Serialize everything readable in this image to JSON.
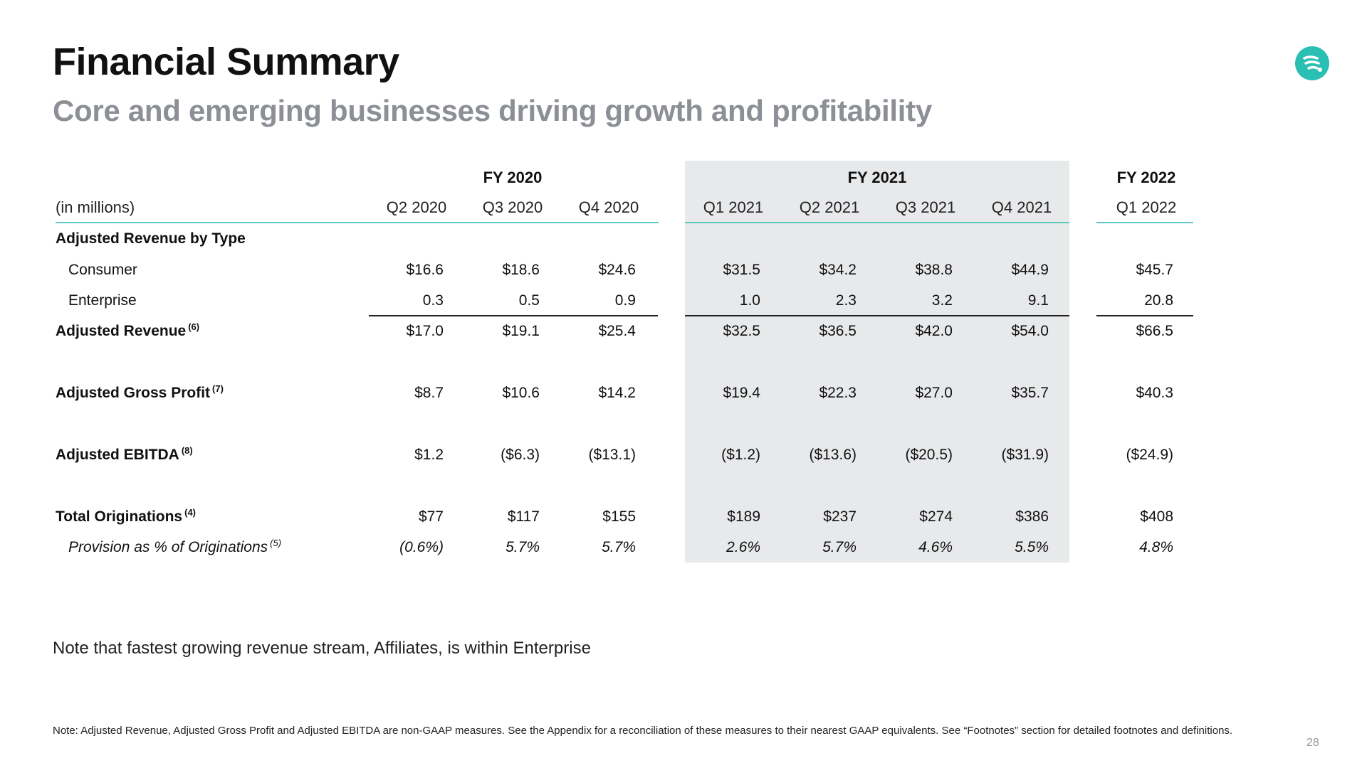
{
  "header": {
    "title": "Financial Summary",
    "subtitle": "Core and emerging businesses driving growth and profitability"
  },
  "colors": {
    "accent": "#5cc7bd",
    "shade": "#e8e9eb",
    "subtitle": "#8c8f96"
  },
  "logo_icon": "chat-bubble-logo-icon",
  "table": {
    "unit_label": "(in millions)",
    "groups": [
      "FY 2020",
      "FY 2021",
      "FY 2022"
    ],
    "columns": [
      "Q2 2020",
      "Q3 2020",
      "Q4 2020",
      "Q1 2021",
      "Q2 2021",
      "Q3 2021",
      "Q4 2021",
      "Q1 2022"
    ],
    "section_heading": "Adjusted Revenue by Type",
    "rows": [
      {
        "label": "Consumer",
        "footnote": "",
        "values": [
          "$16.6",
          "$18.6",
          "$24.6",
          "$31.5",
          "$34.2",
          "$38.8",
          "$44.9",
          "$45.7"
        ]
      },
      {
        "label": "Enterprise",
        "footnote": "",
        "values": [
          "0.3",
          "0.5",
          "0.9",
          "1.0",
          "2.3",
          "3.2",
          "9.1",
          "20.8"
        ]
      },
      {
        "label": "Adjusted Revenue",
        "footnote": "(6)",
        "values": [
          "$17.0",
          "$19.1",
          "$25.4",
          "$32.5",
          "$36.5",
          "$42.0",
          "$54.0",
          "$66.5"
        ]
      },
      {
        "label": "Adjusted Gross Profit",
        "footnote": "(7)",
        "values": [
          "$8.7",
          "$10.6",
          "$14.2",
          "$19.4",
          "$22.3",
          "$27.0",
          "$35.7",
          "$40.3"
        ]
      },
      {
        "label": "Adjusted EBITDA",
        "footnote": "(8)",
        "values": [
          "$1.2",
          "($6.3)",
          "($13.1)",
          "($1.2)",
          "($13.6)",
          "($20.5)",
          "($31.9)",
          "($24.9)"
        ]
      },
      {
        "label": "Total Originations",
        "footnote": "(4)",
        "values": [
          "$77",
          "$117",
          "$155",
          "$189",
          "$237",
          "$274",
          "$386",
          "$408"
        ]
      },
      {
        "label": "Provision as % of Originations",
        "footnote": "(5)",
        "values": [
          "(0.6%)",
          "5.7%",
          "5.7%",
          "2.6%",
          "5.7%",
          "4.6%",
          "5.5%",
          "4.8%"
        ]
      }
    ]
  },
  "note": "Note that fastest growing revenue stream, Affiliates, is within Enterprise",
  "footnote": "Note: Adjusted Revenue, Adjusted Gross Profit and Adjusted EBITDA are non-GAAP measures. See the Appendix for a reconciliation of these measures to their nearest GAAP equivalents. See “Footnotes” section for detailed footnotes and definitions.",
  "page_number": "28"
}
